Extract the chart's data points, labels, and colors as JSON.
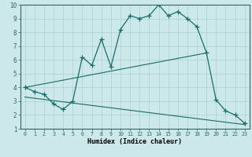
{
  "xlabel": "Humidex (Indice chaleur)",
  "xlim": [
    -0.5,
    23.5
  ],
  "ylim": [
    1,
    10
  ],
  "xticks": [
    0,
    1,
    2,
    3,
    4,
    5,
    6,
    7,
    8,
    9,
    10,
    11,
    12,
    13,
    14,
    15,
    16,
    17,
    18,
    19,
    20,
    21,
    22,
    23
  ],
  "yticks": [
    1,
    2,
    3,
    4,
    5,
    6,
    7,
    8,
    9,
    10
  ],
  "bg_color": "#cce8e8",
  "grid_color": "#aad0d0",
  "line_color": "#1a6b6b",
  "spine_color": "#336666",
  "line1_x": [
    0,
    1,
    2,
    3,
    4,
    5,
    6,
    7,
    8,
    9,
    10,
    11,
    12,
    13,
    14,
    15,
    16,
    17,
    18,
    19,
    20,
    21,
    22,
    23
  ],
  "line1_y": [
    4.0,
    3.7,
    3.5,
    2.8,
    2.4,
    3.0,
    6.2,
    5.6,
    7.5,
    5.5,
    8.2,
    9.2,
    9.0,
    9.2,
    10.0,
    9.2,
    9.5,
    9.0,
    8.4,
    6.5,
    3.1,
    2.3,
    2.0,
    1.4
  ],
  "line2_x": [
    0,
    19
  ],
  "line2_y": [
    4.0,
    6.5
  ],
  "line3_x": [
    0,
    23
  ],
  "line3_y": [
    3.3,
    1.3
  ]
}
